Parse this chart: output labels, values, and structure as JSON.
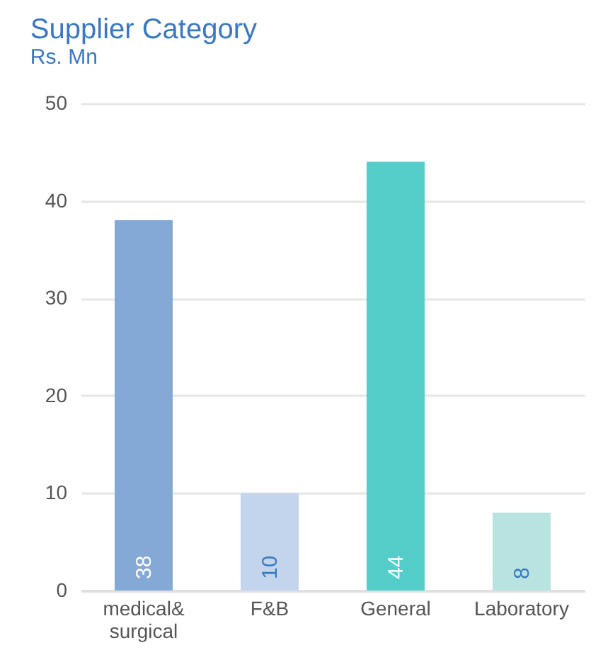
{
  "chart_data": {
    "type": "bar",
    "title": "Supplier Category",
    "subtitle": "Rs. Mn",
    "categories": [
      "medical& surgical",
      "F&B",
      "General",
      "Laboratory"
    ],
    "values": [
      38,
      10,
      44,
      8
    ],
    "colors": [
      "#84a9d6",
      "#c3d5ec",
      "#55cdc8",
      "#b8e3e1"
    ],
    "ylim": [
      0,
      50
    ],
    "yticks": [
      0,
      10,
      20,
      30,
      40,
      50
    ],
    "grid": "y",
    "data_labels": true
  }
}
